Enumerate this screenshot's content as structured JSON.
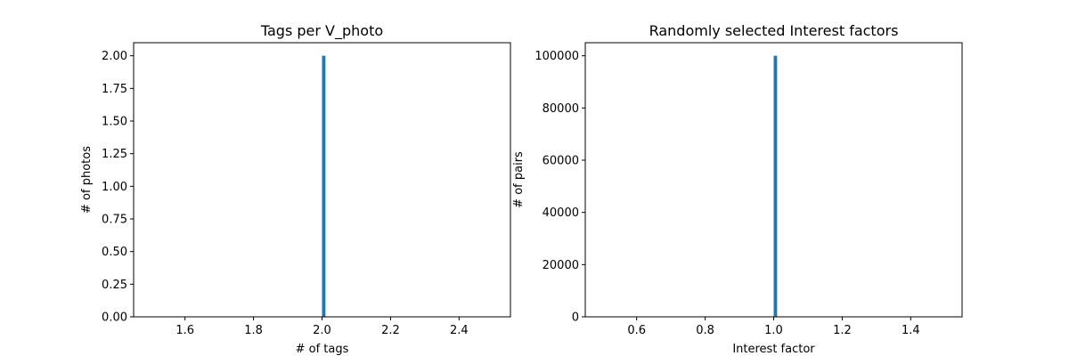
{
  "chart_data": [
    {
      "type": "bar",
      "title": "Tags per V_photo",
      "xlabel": "# of tags",
      "ylabel": "# of photos",
      "xlim": [
        1.45,
        2.55
      ],
      "ylim": [
        0,
        2.1
      ],
      "xticks": [
        1.6,
        1.8,
        2.0,
        2.2,
        2.4
      ],
      "xtick_labels": [
        "1.6",
        "1.8",
        "2.0",
        "2.2",
        "2.4"
      ],
      "yticks": [
        0,
        0.25,
        0.5,
        0.75,
        1.0,
        1.25,
        1.5,
        1.75,
        2.0
      ],
      "ytick_labels": [
        "0.00",
        "0.25",
        "0.50",
        "0.75",
        "1.00",
        "1.25",
        "1.50",
        "1.75",
        "2.00"
      ],
      "bars": [
        {
          "x0": 2.0,
          "x1": 2.01,
          "value": 2
        }
      ],
      "bar_color": "#1f77b4",
      "grid": false,
      "legend": "none"
    },
    {
      "type": "bar",
      "title": "Randomly selected Interest factors",
      "xlabel": "Interest factor",
      "ylabel": "# of pairs",
      "xlim": [
        0.45,
        1.55
      ],
      "ylim": [
        0,
        105000
      ],
      "xticks": [
        0.6,
        0.8,
        1.0,
        1.2,
        1.4
      ],
      "xtick_labels": [
        "0.6",
        "0.8",
        "1.0",
        "1.2",
        "1.4"
      ],
      "yticks": [
        0,
        20000,
        40000,
        60000,
        80000,
        100000
      ],
      "ytick_labels": [
        "0",
        "20000",
        "40000",
        "60000",
        "80000",
        "100000"
      ],
      "bars": [
        {
          "x0": 1.0,
          "x1": 1.01,
          "value": 100000
        }
      ],
      "bar_color": "#1f77b4",
      "grid": false,
      "legend": "none"
    }
  ]
}
